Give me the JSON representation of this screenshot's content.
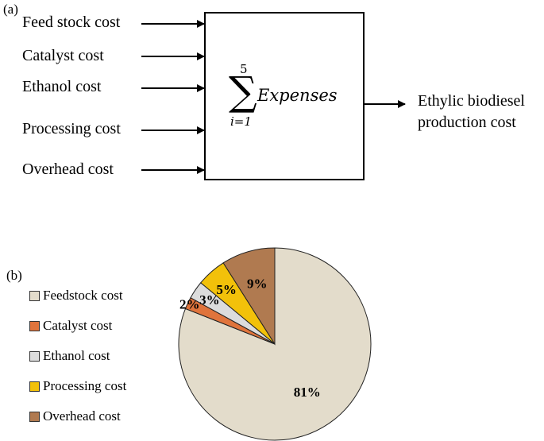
{
  "panel_a": {
    "label": "(a)",
    "inputs": [
      "Feed stock cost",
      "Catalyst cost",
      "Ethanol cost",
      "Processing cost",
      "Overhead cost"
    ],
    "sum": {
      "upper": "5",
      "lower": "i=1",
      "symbol": "∑",
      "expression": "Expenses"
    },
    "output_lines": [
      "Ethylic biodiesel",
      "production cost"
    ]
  },
  "panel_b": {
    "label": "(b)"
  },
  "chart_data": {
    "type": "pie",
    "categories": [
      "Feedstock cost",
      "Catalyst cost",
      "Ethanol cost",
      "Processing cost",
      "Overhead cost"
    ],
    "values": [
      81,
      2,
      3,
      5,
      9
    ],
    "data_labels": [
      "81%",
      "2%",
      "3%",
      "5%",
      "9%"
    ],
    "colors": [
      "#e3dccb",
      "#e0743c",
      "#dcdcdc",
      "#f2c10a",
      "#b07a50"
    ],
    "legend_position": "left"
  }
}
